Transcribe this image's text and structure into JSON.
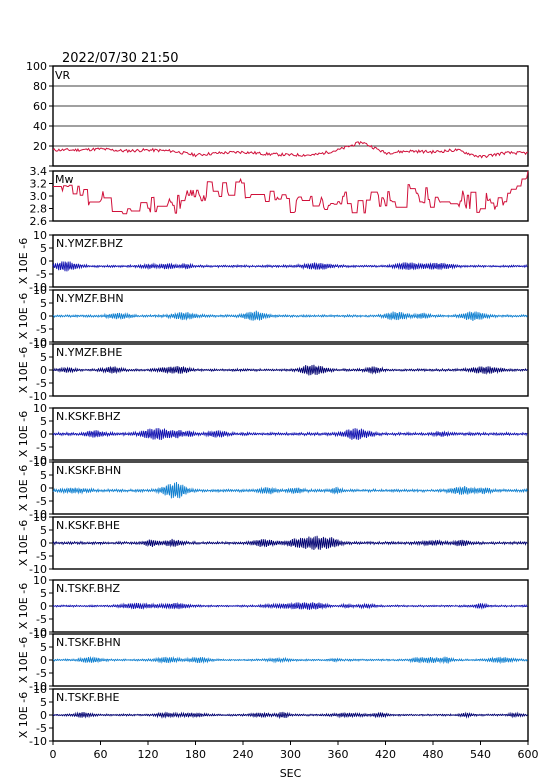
{
  "header": {
    "timestamp": "2022/07/30 21:50"
  },
  "colors": {
    "frame": "#000000",
    "vr_trace": "#d0103a",
    "mw_trace": "#d0103a",
    "dark_trace": "#000070",
    "mid_blue_trace": "#1010b0",
    "light_blue_trace": "#1080d0"
  },
  "chart_data": [
    {
      "type": "line",
      "panel": "vr",
      "label": "VR",
      "xlim": [
        0,
        600
      ],
      "ylim": [
        0,
        100
      ],
      "yticks": [
        0,
        20,
        40,
        60,
        80,
        100
      ],
      "ytick_labels": [
        "",
        "20",
        "40",
        "60",
        "80",
        "100"
      ],
      "grid": true,
      "x": [
        0,
        30,
        60,
        90,
        120,
        150,
        180,
        210,
        240,
        270,
        300,
        330,
        360,
        390,
        420,
        450,
        480,
        510,
        540,
        570,
        600
      ],
      "y": [
        16,
        16,
        17,
        15,
        16,
        15,
        11,
        13,
        14,
        12,
        11,
        11,
        16,
        24,
        13,
        15,
        14,
        16,
        9,
        13,
        13
      ]
    },
    {
      "type": "line",
      "panel": "mw",
      "label": "Mw",
      "xlim": [
        0,
        600
      ],
      "ylim": [
        2.6,
        3.4
      ],
      "yticks": [
        2.6,
        2.8,
        3.0,
        3.2,
        3.4
      ],
      "ytick_labels": [
        "2.6",
        "2.8",
        "3.0",
        "3.2",
        "3.4"
      ],
      "x": [
        0,
        30,
        60,
        90,
        120,
        150,
        180,
        210,
        240,
        270,
        300,
        330,
        360,
        390,
        420,
        450,
        480,
        510,
        540,
        570,
        600
      ],
      "y": [
        3.0,
        3.1,
        2.95,
        2.85,
        2.9,
        2.8,
        3.05,
        3.15,
        3.15,
        3.0,
        2.85,
        2.95,
        2.9,
        2.9,
        2.9,
        3.05,
        2.95,
        2.95,
        2.9,
        2.95,
        3.3
      ]
    },
    {
      "type": "line",
      "panel": "seismogram",
      "stations": [
        {
          "label": "N.YMZF.BHZ",
          "color": "#1010b0",
          "baseline": -2,
          "amplitude": 0.5
        },
        {
          "label": "N.YMZF.BHN",
          "color": "#1080d0",
          "baseline": 0,
          "amplitude": 0.5
        },
        {
          "label": "N.YMZF.BHE",
          "color": "#000070",
          "baseline": 0,
          "amplitude": 0.5
        },
        {
          "label": "N.KSKF.BHZ",
          "color": "#1010b0",
          "baseline": 0,
          "amplitude": 0.6
        },
        {
          "label": "N.KSKF.BHN",
          "color": "#1080d0",
          "baseline": -1,
          "amplitude": 0.6
        },
        {
          "label": "N.KSKF.BHE",
          "color": "#000070",
          "baseline": 0,
          "amplitude": 0.6
        },
        {
          "label": "N.TSKF.BHZ",
          "color": "#1010b0",
          "baseline": 0,
          "amplitude": 0.4
        },
        {
          "label": "N.TSKF.BHN",
          "color": "#1080d0",
          "baseline": 0,
          "amplitude": 0.4
        },
        {
          "label": "N.TSKF.BHE",
          "color": "#000070",
          "baseline": 0,
          "amplitude": 0.4
        }
      ],
      "ylim": [
        -10,
        10
      ],
      "yticks": [
        -10,
        -5,
        0,
        5,
        10
      ],
      "ytick_labels": [
        "-10",
        "-5",
        "0",
        "5",
        "10"
      ],
      "ylabel": "X 10E -6",
      "xlim": [
        0,
        600
      ],
      "xticks": [
        0,
        60,
        120,
        180,
        240,
        300,
        360,
        420,
        480,
        540,
        600
      ],
      "xtick_labels": [
        "0",
        "60",
        "120",
        "180",
        "240",
        "300",
        "360",
        "420",
        "480",
        "540",
        "600"
      ],
      "xlabel": "SEC"
    }
  ]
}
